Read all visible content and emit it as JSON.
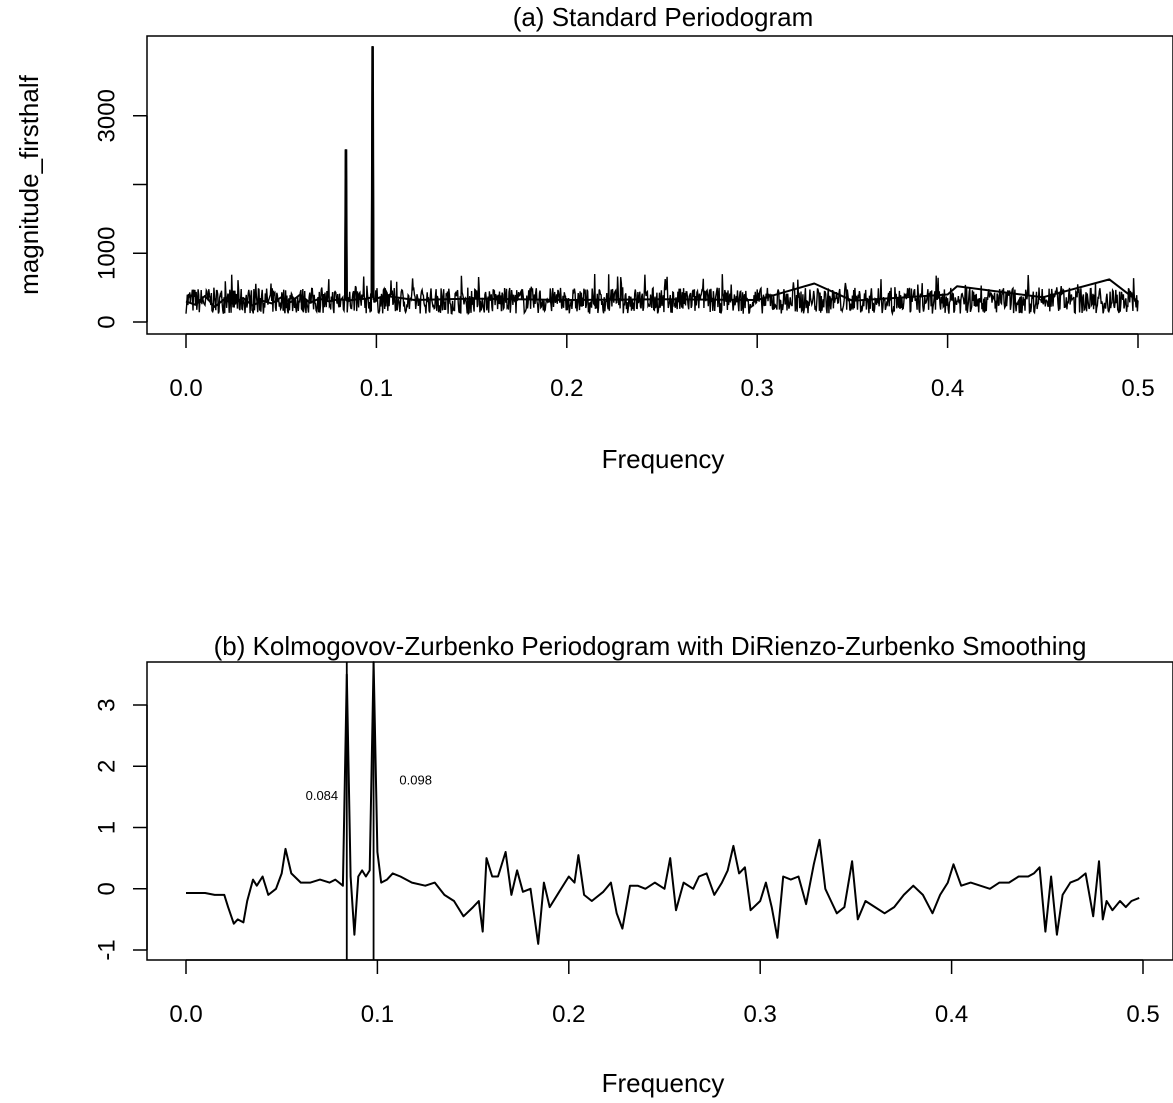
{
  "chart_data": [
    {
      "id": "a",
      "type": "line",
      "title": "(a) Standard Periodogram",
      "xlabel": "Frequency",
      "ylabel": "magnitude_firsthalf",
      "xlim": [
        0,
        0.5
      ],
      "ylim": [
        0,
        4000
      ],
      "xticks": [
        0.0,
        0.1,
        0.2,
        0.3,
        0.4,
        0.5
      ],
      "xtick_labels": [
        "0.0",
        "0.1",
        "0.2",
        "0.3",
        "0.4",
        "0.5"
      ],
      "yticks": [
        0,
        1000,
        2000,
        3000
      ],
      "ytick_labels": [
        "0",
        "1000",
        "",
        "3000"
      ],
      "grid": false,
      "series": [
        {
          "x": [
            0.0,
            0.005,
            0.01,
            0.015,
            0.02,
            0.025,
            0.03,
            0.035,
            0.04,
            0.045,
            0.05,
            0.055,
            0.06,
            0.065,
            0.07,
            0.075,
            0.08,
            0.0835,
            0.084,
            0.0845,
            0.09,
            0.095,
            0.0975,
            0.098,
            0.0985,
            0.105,
            0.12,
            0.15,
            0.2,
            0.25,
            0.3,
            0.33,
            0.35,
            0.4,
            0.405,
            0.45,
            0.485,
            0.5
          ],
          "values": [
            300,
            250,
            380,
            220,
            330,
            260,
            350,
            240,
            310,
            270,
            360,
            290,
            400,
            280,
            340,
            300,
            330,
            320,
            2500,
            310,
            330,
            340,
            360,
            4000,
            330,
            380,
            320,
            340,
            320,
            330,
            320,
            560,
            310,
            400,
            520,
            360,
            620,
            300
          ]
        }
      ]
    },
    {
      "id": "b",
      "type": "line",
      "title": "(b) Kolmogovov-Zurbenko Periodogram with DiRienzo-Zurbenko Smoothing",
      "xlabel": "Frequency",
      "ylabel": "",
      "xlim": [
        0,
        0.5
      ],
      "ylim": [
        -1,
        3.5
      ],
      "xticks": [
        0.0,
        0.1,
        0.2,
        0.3,
        0.4,
        0.5
      ],
      "xtick_labels": [
        "0.0",
        "0.1",
        "0.2",
        "0.3",
        "0.4",
        "0.5"
      ],
      "yticks": [
        -1,
        0,
        1,
        2,
        3
      ],
      "ytick_labels": [
        "-1",
        "0",
        "1",
        "2",
        "3"
      ],
      "grid": false,
      "vlines": [
        0.084,
        0.098
      ],
      "annotations": [
        {
          "text": "0.084",
          "x": 0.071,
          "y": 1.45
        },
        {
          "text": "0.098",
          "x": 0.12,
          "y": 1.7
        }
      ],
      "series": [
        {
          "x": [
            0.0,
            0.01,
            0.015,
            0.02,
            0.022,
            0.025,
            0.027,
            0.03,
            0.032,
            0.035,
            0.037,
            0.04,
            0.043,
            0.047,
            0.05,
            0.052,
            0.055,
            0.06,
            0.065,
            0.07,
            0.075,
            0.078,
            0.08,
            0.082,
            0.084,
            0.086,
            0.088,
            0.09,
            0.092,
            0.094,
            0.096,
            0.098,
            0.1,
            0.102,
            0.105,
            0.108,
            0.112,
            0.118,
            0.125,
            0.13,
            0.135,
            0.14,
            0.145,
            0.15,
            0.153,
            0.155,
            0.157,
            0.16,
            0.163,
            0.167,
            0.17,
            0.173,
            0.176,
            0.18,
            0.184,
            0.187,
            0.19,
            0.195,
            0.2,
            0.203,
            0.205,
            0.208,
            0.212,
            0.218,
            0.222,
            0.225,
            0.228,
            0.232,
            0.236,
            0.24,
            0.245,
            0.25,
            0.253,
            0.256,
            0.26,
            0.265,
            0.268,
            0.272,
            0.276,
            0.28,
            0.283,
            0.286,
            0.289,
            0.292,
            0.295,
            0.3,
            0.303,
            0.306,
            0.309,
            0.312,
            0.316,
            0.32,
            0.324,
            0.328,
            0.331,
            0.334,
            0.337,
            0.34,
            0.344,
            0.348,
            0.351,
            0.355,
            0.36,
            0.365,
            0.37,
            0.375,
            0.38,
            0.385,
            0.39,
            0.394,
            0.398,
            0.401,
            0.405,
            0.41,
            0.415,
            0.42,
            0.425,
            0.43,
            0.435,
            0.44,
            0.443,
            0.446,
            0.449,
            0.452,
            0.455,
            0.458,
            0.462,
            0.466,
            0.47,
            0.474,
            0.477,
            0.479,
            0.481,
            0.484,
            0.488,
            0.491,
            0.494,
            0.498
          ],
          "values": [
            -0.07,
            -0.07,
            -0.1,
            -0.1,
            -0.3,
            -0.57,
            -0.5,
            -0.55,
            -0.2,
            0.15,
            0.05,
            0.2,
            -0.1,
            0.0,
            0.25,
            0.65,
            0.25,
            0.1,
            0.1,
            0.15,
            0.1,
            0.15,
            0.1,
            0.05,
            3.5,
            0.2,
            -0.75,
            0.2,
            0.3,
            0.2,
            0.3,
            3.7,
            0.6,
            0.1,
            0.15,
            0.25,
            0.2,
            0.1,
            0.05,
            0.1,
            -0.1,
            -0.2,
            -0.45,
            -0.3,
            -0.2,
            -0.7,
            0.5,
            0.2,
            0.2,
            0.6,
            -0.1,
            0.3,
            -0.05,
            0.0,
            -0.9,
            0.1,
            -0.3,
            -0.05,
            0.2,
            0.1,
            0.55,
            -0.1,
            -0.2,
            -0.05,
            0.1,
            -0.4,
            -0.65,
            0.05,
            0.05,
            0.0,
            0.1,
            0.0,
            0.5,
            -0.35,
            0.1,
            0.0,
            0.2,
            0.25,
            -0.1,
            0.1,
            0.3,
            0.7,
            0.25,
            0.35,
            -0.35,
            -0.2,
            0.1,
            -0.3,
            -0.8,
            0.2,
            0.15,
            0.2,
            -0.25,
            0.4,
            0.8,
            0.0,
            -0.2,
            -0.4,
            -0.3,
            0.45,
            -0.5,
            -0.2,
            -0.3,
            -0.4,
            -0.3,
            -0.1,
            0.05,
            -0.1,
            -0.4,
            -0.1,
            0.1,
            0.4,
            0.05,
            0.1,
            0.05,
            0.0,
            0.1,
            0.1,
            0.2,
            0.2,
            0.25,
            0.35,
            -0.7,
            0.2,
            -0.75,
            -0.1,
            0.1,
            0.15,
            0.25,
            -0.45,
            0.45,
            -0.5,
            -0.2,
            -0.35,
            -0.2,
            -0.3,
            -0.2,
            -0.15
          ]
        }
      ]
    }
  ]
}
